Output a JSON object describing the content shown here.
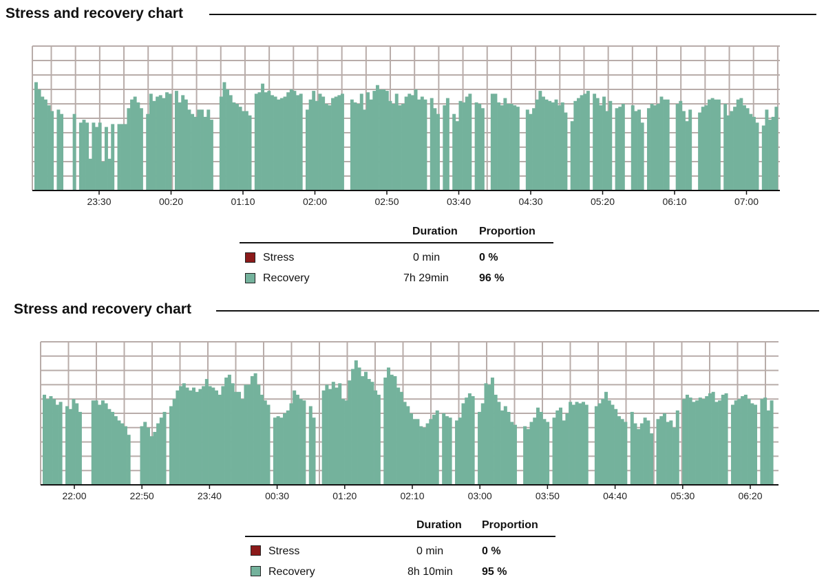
{
  "colors": {
    "stress": "#8b1a1a",
    "recovery": "#74b29c",
    "grid": "#b8aca9"
  },
  "charts": [
    {
      "title": "Stress and recovery chart",
      "summary": {
        "headers": {
          "duration": "Duration",
          "proportion": "Proportion"
        },
        "rows": [
          {
            "label": "Stress",
            "duration": "0 min",
            "proportion": "0 %",
            "color_key": "stress"
          },
          {
            "label": "Recovery",
            "duration": "7h 29min",
            "proportion": "96 %",
            "color_key": "recovery"
          }
        ]
      }
    },
    {
      "title": "Stress and recovery chart",
      "summary": {
        "headers": {
          "duration": "Duration",
          "proportion": "Proportion"
        },
        "rows": [
          {
            "label": "Stress",
            "duration": "0 min",
            "proportion": "0 %",
            "color_key": "stress"
          },
          {
            "label": "Recovery",
            "duration": "8h 10min",
            "proportion": "95 %",
            "color_key": "recovery"
          }
        ]
      }
    }
  ],
  "chart_data": [
    {
      "type": "bar",
      "title": "Stress and recovery chart",
      "xlabel": "",
      "ylabel": "",
      "ylim": [
        0,
        10
      ],
      "grid": true,
      "x_ticks": [
        "23:30",
        "00:20",
        "01:10",
        "02:00",
        "02:50",
        "03:40",
        "04:30",
        "05:20",
        "06:10",
        "07:00"
      ],
      "series": [
        {
          "name": "Recovery",
          "values": [
            7.5,
            7.0,
            6.5,
            6.3,
            5.9,
            5.5,
            0,
            5.6,
            5.3,
            0,
            0,
            0,
            5.3,
            0,
            4.7,
            4.9,
            4.7,
            2.2,
            4.7,
            4.4,
            4.7,
            2.0,
            4.4,
            2.2,
            4.6,
            0,
            4.6,
            4.6,
            4.6,
            5.7,
            6.3,
            6.5,
            6.1,
            5.7,
            0,
            5.3,
            6.7,
            6.2,
            6.5,
            6.6,
            6.4,
            6.8,
            6.7,
            0,
            6.9,
            6.1,
            6.6,
            6.3,
            5.6,
            5.3,
            5.1,
            5.6,
            5.6,
            5.1,
            5.6,
            4.9,
            0,
            0,
            6.5,
            7.5,
            7.0,
            6.6,
            6.1,
            6.0,
            5.8,
            5.5,
            5.5,
            5.2,
            0,
            6.7,
            6.8,
            7.4,
            6.8,
            6.9,
            6.6,
            6.5,
            6.3,
            6.4,
            6.5,
            6.8,
            7.0,
            6.9,
            6.6,
            6.7,
            0,
            5.6,
            6.3,
            6.9,
            6.2,
            6.7,
            6.5,
            6.0,
            5.9,
            6.4,
            6.5,
            6.6,
            6.7,
            0,
            0,
            6.3,
            6.1,
            6.0,
            6.7,
            5.6,
            6.8,
            6.3,
            6.9,
            7.3,
            7.0,
            7.0,
            6.9,
            6.2,
            6.0,
            6.7,
            5.9,
            6.0,
            6.5,
            6.7,
            6.6,
            7.0,
            6.3,
            6.5,
            6.3,
            0,
            6.4,
            5.7,
            5.3,
            0,
            5.9,
            6.4,
            0,
            5.3,
            4.8,
            6.2,
            6.1,
            6.5,
            6.7,
            0,
            6.1,
            6.0,
            5.7,
            0,
            0,
            6.7,
            6.7,
            6.1,
            5.9,
            6.4,
            6.0,
            6.0,
            5.9,
            5.8,
            0,
            0,
            5.6,
            5.3,
            5.7,
            6.3,
            6.9,
            6.5,
            6.3,
            6.2,
            6.1,
            6.3,
            5.9,
            6.1,
            5.4,
            0,
            4.8,
            6.2,
            6.4,
            6.6,
            6.7,
            6.9,
            0,
            6.7,
            6.4,
            5.9,
            6.5,
            5.5,
            6.2,
            0,
            5.7,
            5.8,
            6.0,
            0,
            0,
            5.9,
            5.5,
            5.6,
            4.7,
            0,
            5.7,
            6.0,
            5.9,
            6.0,
            6.5,
            6.3,
            6.3,
            0,
            0,
            6.0,
            6.2,
            5.5,
            4.8,
            5.6,
            0,
            0,
            5.4,
            5.8,
            5.9,
            6.3,
            6.4,
            6.3,
            6.3,
            0,
            6.0,
            5.2,
            5.5,
            5.8,
            6.3,
            6.4,
            5.9,
            5.7,
            5.3,
            5.1,
            4.7,
            0,
            4.5,
            5.6,
            4.9,
            5.1,
            5.8
          ],
          "color_key": "recovery"
        }
      ]
    },
    {
      "type": "bar",
      "title": "Stress and recovery chart",
      "xlabel": "",
      "ylabel": "",
      "ylim": [
        0,
        10
      ],
      "grid": true,
      "x_ticks": [
        "22:00",
        "22:50",
        "23:40",
        "00:30",
        "01:20",
        "02:10",
        "03:00",
        "03:50",
        "04:40",
        "05:30",
        "06:20"
      ],
      "series": [
        {
          "name": "Recovery",
          "values": [
            6.3,
            6.0,
            6.2,
            6.0,
            5.6,
            5.8,
            0,
            5.5,
            5.3,
            6.0,
            5.7,
            5.1,
            0,
            0,
            0,
            5.9,
            5.9,
            5.6,
            5.9,
            5.7,
            5.3,
            5.1,
            4.8,
            4.5,
            4.3,
            4.1,
            3.5,
            0,
            0,
            0,
            4.1,
            4.4,
            4.0,
            3.4,
            3.7,
            4.3,
            4.7,
            5.1,
            0,
            5.5,
            6.0,
            6.6,
            6.9,
            7.1,
            6.8,
            6.6,
            6.8,
            6.5,
            6.7,
            6.9,
            7.4,
            6.9,
            6.8,
            6.6,
            6.3,
            6.9,
            7.5,
            7.7,
            7.1,
            6.5,
            6.5,
            6.0,
            7.0,
            7.0,
            7.6,
            7.8,
            7.0,
            6.3,
            5.9,
            5.6,
            0,
            4.7,
            4.8,
            4.7,
            5.0,
            5.2,
            5.7,
            6.6,
            6.3,
            6.0,
            5.9,
            0,
            5.5,
            4.7,
            0,
            0,
            6.6,
            7.0,
            6.7,
            7.2,
            6.8,
            7.1,
            6.0,
            5.9,
            7.3,
            8.1,
            8.7,
            8.2,
            7.6,
            7.9,
            7.4,
            7.2,
            6.6,
            6.3,
            0,
            7.5,
            8.2,
            7.7,
            7.6,
            6.8,
            6.5,
            5.8,
            5.5,
            5.0,
            4.6,
            4.6,
            4.1,
            4.0,
            4.3,
            4.6,
            4.9,
            5.2,
            0,
            5.0,
            4.8,
            4.7,
            0,
            4.5,
            4.7,
            5.7,
            6.1,
            6.4,
            6.2,
            0,
            5.1,
            5.7,
            7.1,
            7.0,
            7.5,
            6.3,
            5.8,
            5.2,
            5.5,
            5.1,
            4.4,
            4.2,
            0,
            0,
            4.1,
            3.9,
            4.4,
            4.7,
            5.4,
            5.1,
            4.6,
            4.4,
            0,
            4.7,
            5.2,
            5.4,
            4.5,
            5.0,
            5.8,
            5.6,
            5.8,
            5.7,
            5.8,
            5.6,
            0,
            0,
            5.5,
            5.7,
            6.0,
            6.5,
            5.9,
            5.6,
            5.3,
            4.8,
            4.6,
            4.4,
            0,
            5.1,
            4.3,
            3.9,
            4.3,
            4.7,
            4.5,
            3.6,
            0,
            4.6,
            4.8,
            5.0,
            4.4,
            4.5,
            4.0,
            5.2,
            0,
            6.0,
            6.3,
            6.1,
            5.8,
            5.9,
            6.1,
            6.0,
            6.2,
            6.4,
            6.5,
            5.8,
            5.9,
            6.3,
            6.4,
            0,
            5.6,
            5.9,
            6.0,
            6.2,
            6.3,
            6.0,
            5.7,
            5.6,
            0,
            6.0,
            6.1,
            5.2,
            5.9,
            0
          ],
          "color_key": "recovery"
        }
      ]
    }
  ]
}
